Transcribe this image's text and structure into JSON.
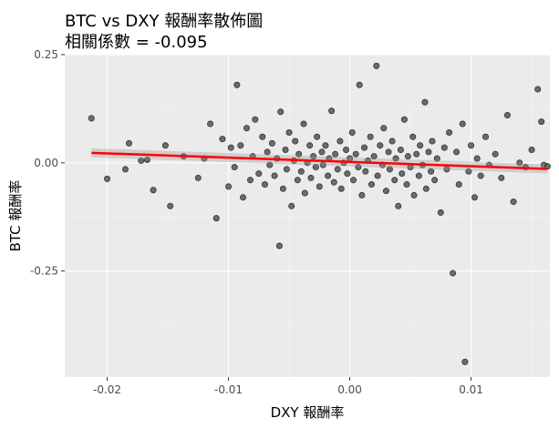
{
  "chart_data": {
    "type": "scatter",
    "title": "BTC vs DXY 報酬率散佈圖",
    "subtitle": "相關係數 = -0.095",
    "xlabel": "DXY 報酬率",
    "ylabel": "BTC 報酬率",
    "xlim": [
      -0.0235,
      0.0165
    ],
    "ylim": [
      -0.495,
      0.25
    ],
    "x_ticks": [
      -0.02,
      -0.01,
      0.0,
      0.01
    ],
    "x_tick_labels": [
      "-0.02",
      "-0.01",
      "0.00",
      "0.01"
    ],
    "y_ticks": [
      0.25,
      0.0,
      -0.25
    ],
    "y_tick_labels": [
      "0.25",
      "0.00",
      "-0.25"
    ],
    "grid": true,
    "panel_color": "#ebebeb",
    "point_color": "#000000",
    "trend_color": "#ff0000",
    "trend_line": {
      "x": [
        -0.0213,
        0.0163
      ],
      "y": [
        0.023,
        -0.014
      ]
    },
    "points": [
      {
        "x": -0.0213,
        "y": 0.103
      },
      {
        "x": -0.02,
        "y": -0.037
      },
      {
        "x": -0.0182,
        "y": 0.045
      },
      {
        "x": -0.0185,
        "y": -0.015
      },
      {
        "x": -0.0172,
        "y": 0.005
      },
      {
        "x": -0.0167,
        "y": 0.007
      },
      {
        "x": -0.0162,
        "y": -0.063
      },
      {
        "x": -0.0152,
        "y": 0.04
      },
      {
        "x": -0.0148,
        "y": -0.1
      },
      {
        "x": -0.0137,
        "y": 0.015
      },
      {
        "x": -0.0125,
        "y": -0.035
      },
      {
        "x": -0.012,
        "y": 0.01
      },
      {
        "x": -0.0115,
        "y": 0.09
      },
      {
        "x": -0.011,
        "y": -0.128
      },
      {
        "x": -0.0105,
        "y": 0.055
      },
      {
        "x": -0.01,
        "y": -0.055
      },
      {
        "x": -0.0098,
        "y": 0.035
      },
      {
        "x": -0.0095,
        "y": -0.01
      },
      {
        "x": -0.0093,
        "y": 0.18
      },
      {
        "x": -0.009,
        "y": 0.04
      },
      {
        "x": -0.0088,
        "y": -0.08
      },
      {
        "x": -0.0085,
        "y": 0.08
      },
      {
        "x": -0.0082,
        "y": -0.04
      },
      {
        "x": -0.008,
        "y": 0.015
      },
      {
        "x": -0.0078,
        "y": 0.1
      },
      {
        "x": -0.0075,
        "y": -0.025
      },
      {
        "x": -0.0072,
        "y": 0.06
      },
      {
        "x": -0.007,
        "y": -0.05
      },
      {
        "x": -0.0068,
        "y": 0.025
      },
      {
        "x": -0.0066,
        "y": -0.005
      },
      {
        "x": -0.0064,
        "y": 0.045
      },
      {
        "x": -0.0062,
        "y": -0.03
      },
      {
        "x": -0.006,
        "y": 0.01
      },
      {
        "x": -0.0058,
        "y": -0.192
      },
      {
        "x": -0.0057,
        "y": 0.118
      },
      {
        "x": -0.0055,
        "y": -0.06
      },
      {
        "x": -0.0053,
        "y": 0.03
      },
      {
        "x": -0.0052,
        "y": -0.015
      },
      {
        "x": -0.005,
        "y": 0.07
      },
      {
        "x": -0.0048,
        "y": -0.1
      },
      {
        "x": -0.0046,
        "y": 0.005
      },
      {
        "x": -0.0045,
        "y": 0.05
      },
      {
        "x": -0.0043,
        "y": -0.04
      },
      {
        "x": -0.0042,
        "y": 0.02
      },
      {
        "x": -0.004,
        "y": -0.02
      },
      {
        "x": -0.0038,
        "y": 0.09
      },
      {
        "x": -0.0037,
        "y": -0.07
      },
      {
        "x": -0.0035,
        "y": 0.0
      },
      {
        "x": -0.0033,
        "y": 0.04
      },
      {
        "x": -0.0032,
        "y": -0.035
      },
      {
        "x": -0.003,
        "y": 0.015
      },
      {
        "x": -0.0028,
        "y": -0.01
      },
      {
        "x": -0.0027,
        "y": 0.06
      },
      {
        "x": -0.0025,
        "y": -0.055
      },
      {
        "x": -0.0023,
        "y": 0.025
      },
      {
        "x": -0.0022,
        "y": -0.005
      },
      {
        "x": -0.002,
        "y": 0.04
      },
      {
        "x": -0.0018,
        "y": -0.03
      },
      {
        "x": -0.0017,
        "y": 0.01
      },
      {
        "x": -0.0015,
        "y": 0.12
      },
      {
        "x": -0.0013,
        "y": -0.045
      },
      {
        "x": -0.0012,
        "y": 0.02
      },
      {
        "x": -0.001,
        "y": -0.015
      },
      {
        "x": -0.0008,
        "y": 0.05
      },
      {
        "x": -0.0007,
        "y": -0.06
      },
      {
        "x": -0.0005,
        "y": 0.0
      },
      {
        "x": -0.0003,
        "y": 0.03
      },
      {
        "x": -0.0002,
        "y": -0.025
      },
      {
        "x": 0.0,
        "y": 0.01
      },
      {
        "x": 0.0002,
        "y": 0.07
      },
      {
        "x": 0.0003,
        "y": -0.04
      },
      {
        "x": 0.0005,
        "y": 0.02
      },
      {
        "x": 0.0007,
        "y": -0.01
      },
      {
        "x": 0.0008,
        "y": 0.18
      },
      {
        "x": 0.001,
        "y": -0.075
      },
      {
        "x": 0.0012,
        "y": 0.035
      },
      {
        "x": 0.0013,
        "y": -0.02
      },
      {
        "x": 0.0015,
        "y": 0.005
      },
      {
        "x": 0.0017,
        "y": 0.06
      },
      {
        "x": 0.0018,
        "y": -0.05
      },
      {
        "x": 0.002,
        "y": 0.015
      },
      {
        "x": 0.0022,
        "y": 0.224
      },
      {
        "x": 0.0023,
        "y": -0.03
      },
      {
        "x": 0.0025,
        "y": 0.04
      },
      {
        "x": 0.0027,
        "y": -0.005
      },
      {
        "x": 0.0028,
        "y": 0.08
      },
      {
        "x": 0.003,
        "y": -0.065
      },
      {
        "x": 0.0032,
        "y": 0.025
      },
      {
        "x": 0.0033,
        "y": -0.015
      },
      {
        "x": 0.0035,
        "y": 0.05
      },
      {
        "x": 0.0037,
        "y": -0.04
      },
      {
        "x": 0.0038,
        "y": 0.01
      },
      {
        "x": 0.004,
        "y": -0.1
      },
      {
        "x": 0.0042,
        "y": 0.03
      },
      {
        "x": 0.0043,
        "y": -0.025
      },
      {
        "x": 0.0045,
        "y": 0.1
      },
      {
        "x": 0.0047,
        "y": -0.05
      },
      {
        "x": 0.0048,
        "y": 0.015
      },
      {
        "x": 0.005,
        "y": -0.01
      },
      {
        "x": 0.0052,
        "y": 0.06
      },
      {
        "x": 0.0053,
        "y": -0.075
      },
      {
        "x": 0.0055,
        "y": 0.02
      },
      {
        "x": 0.0057,
        "y": -0.03
      },
      {
        "x": 0.0058,
        "y": 0.04
      },
      {
        "x": 0.006,
        "y": -0.005
      },
      {
        "x": 0.0062,
        "y": 0.14
      },
      {
        "x": 0.0063,
        "y": -0.06
      },
      {
        "x": 0.0065,
        "y": 0.025
      },
      {
        "x": 0.0067,
        "y": -0.02
      },
      {
        "x": 0.0068,
        "y": 0.05
      },
      {
        "x": 0.007,
        "y": -0.04
      },
      {
        "x": 0.0072,
        "y": 0.01
      },
      {
        "x": 0.0075,
        "y": -0.115
      },
      {
        "x": 0.0078,
        "y": 0.035
      },
      {
        "x": 0.008,
        "y": -0.015
      },
      {
        "x": 0.0082,
        "y": 0.07
      },
      {
        "x": 0.0085,
        "y": -0.255
      },
      {
        "x": 0.0088,
        "y": 0.025
      },
      {
        "x": 0.009,
        "y": -0.05
      },
      {
        "x": 0.0093,
        "y": 0.09
      },
      {
        "x": 0.0095,
        "y": -0.46
      },
      {
        "x": 0.0098,
        "y": -0.02
      },
      {
        "x": 0.01,
        "y": 0.04
      },
      {
        "x": 0.0103,
        "y": -0.08
      },
      {
        "x": 0.0105,
        "y": 0.01
      },
      {
        "x": 0.0108,
        "y": -0.03
      },
      {
        "x": 0.0112,
        "y": 0.06
      },
      {
        "x": 0.0115,
        "y": -0.005
      },
      {
        "x": 0.012,
        "y": 0.02
      },
      {
        "x": 0.0125,
        "y": -0.035
      },
      {
        "x": 0.013,
        "y": 0.11
      },
      {
        "x": 0.0135,
        "y": -0.09
      },
      {
        "x": 0.014,
        "y": 0.0
      },
      {
        "x": 0.0145,
        "y": -0.01
      },
      {
        "x": 0.015,
        "y": 0.03
      },
      {
        "x": 0.0155,
        "y": 0.17
      },
      {
        "x": 0.0158,
        "y": 0.095
      },
      {
        "x": 0.016,
        "y": -0.005
      },
      {
        "x": 0.0163,
        "y": -0.008
      }
    ]
  }
}
